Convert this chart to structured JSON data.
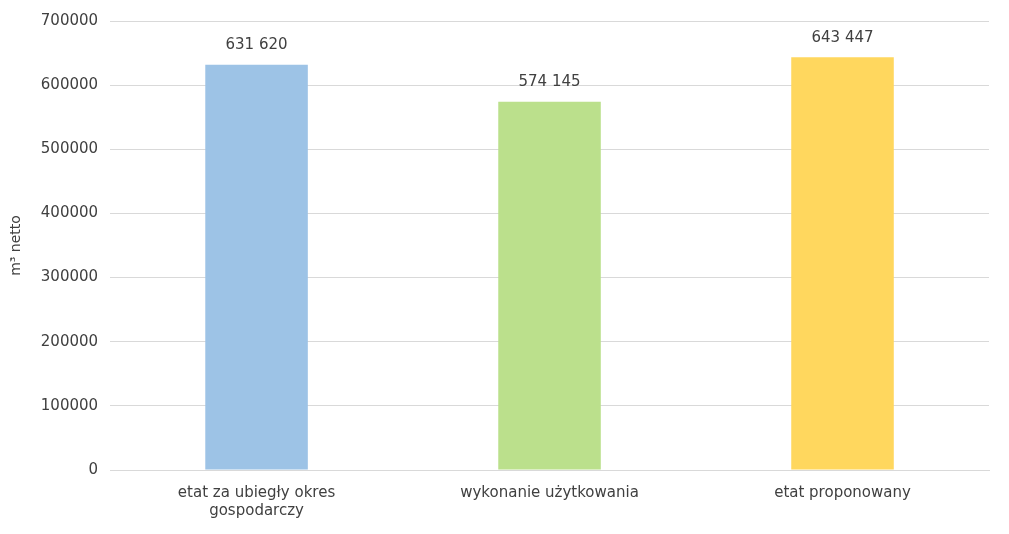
{
  "chart_data": {
    "type": "bar",
    "ylabel": "m³ netto",
    "categories": [
      "etat za ubiegły okres gospodarczy",
      "wykonanie użytkowania",
      "etat proponowany"
    ],
    "values": [
      631620,
      574145,
      643447
    ],
    "colors": [
      "#9dc3e6",
      "#bbe08c",
      "#ffd75e"
    ],
    "value_labels": [
      "631 620",
      "574 145",
      "643 447"
    ],
    "ylim": [
      0,
      700000
    ],
    "yticks": [
      0,
      100000,
      200000,
      300000,
      400000,
      500000,
      600000,
      700000
    ],
    "grid": "y",
    "legend": false
  }
}
